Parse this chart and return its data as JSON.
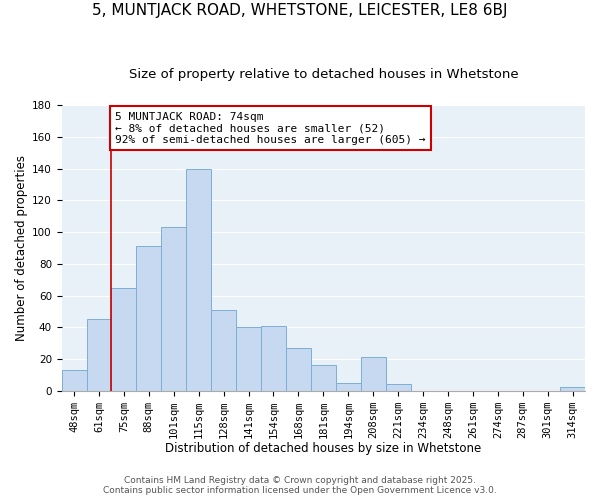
{
  "title": "5, MUNTJACK ROAD, WHETSTONE, LEICESTER, LE8 6BJ",
  "subtitle": "Size of property relative to detached houses in Whetstone",
  "xlabel": "Distribution of detached houses by size in Whetstone",
  "ylabel": "Number of detached properties",
  "bin_labels": [
    "48sqm",
    "61sqm",
    "75sqm",
    "88sqm",
    "101sqm",
    "115sqm",
    "128sqm",
    "141sqm",
    "154sqm",
    "168sqm",
    "181sqm",
    "194sqm",
    "208sqm",
    "221sqm",
    "234sqm",
    "248sqm",
    "261sqm",
    "274sqm",
    "287sqm",
    "301sqm",
    "314sqm"
  ],
  "bar_values": [
    13,
    45,
    65,
    91,
    103,
    140,
    51,
    40,
    41,
    27,
    16,
    5,
    21,
    4,
    0,
    0,
    0,
    0,
    0,
    0,
    2
  ],
  "bar_color": "#c6d9f0",
  "bar_edge_color": "#7bafd4",
  "vline_x": 2,
  "vline_color": "#cc0000",
  "annotation_line1": "5 MUNTJACK ROAD: 74sqm",
  "annotation_line2": "← 8% of detached houses are smaller (52)",
  "annotation_line3": "92% of semi-detached houses are larger (605) →",
  "annotation_box_color": "#ffffff",
  "annotation_box_edge": "#cc0000",
  "ylim": [
    0,
    180
  ],
  "yticks": [
    0,
    20,
    40,
    60,
    80,
    100,
    120,
    140,
    160,
    180
  ],
  "footer1": "Contains HM Land Registry data © Crown copyright and database right 2025.",
  "footer2": "Contains public sector information licensed under the Open Government Licence v3.0.",
  "background_color": "#ffffff",
  "plot_bg_color": "#e8f0f8",
  "grid_color": "#ffffff",
  "title_fontsize": 11,
  "subtitle_fontsize": 9.5,
  "axis_fontsize": 8.5,
  "tick_fontsize": 7.5,
  "footer_fontsize": 6.5,
  "ann_fontsize": 8
}
